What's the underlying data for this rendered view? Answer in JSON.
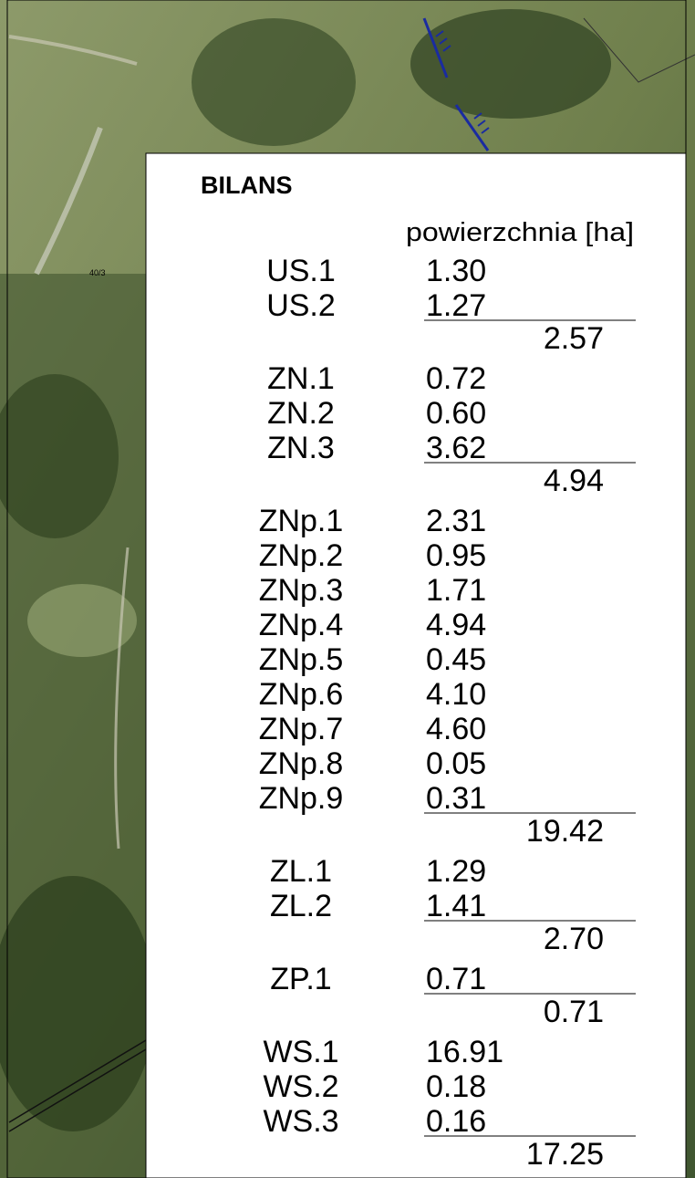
{
  "map": {
    "parcel_label": "40/3"
  },
  "legend": {
    "title": "BILANS",
    "column_header": "powierzchnia [ha]",
    "groups": [
      {
        "rows": [
          {
            "label": "US.1",
            "value": "1.30"
          },
          {
            "label": "US.2",
            "value": "1.27"
          }
        ],
        "total": "2.57"
      },
      {
        "rows": [
          {
            "label": "ZN.1",
            "value": "0.72"
          },
          {
            "label": "ZN.2",
            "value": "0.60"
          },
          {
            "label": "ZN.3",
            "value": "3.62"
          }
        ],
        "total": "4.94"
      },
      {
        "rows": [
          {
            "label": "ZNp.1",
            "value": "2.31"
          },
          {
            "label": "ZNp.2",
            "value": "0.95"
          },
          {
            "label": "ZNp.3",
            "value": "1.71"
          },
          {
            "label": "ZNp.4",
            "value": "4.94"
          },
          {
            "label": "ZNp.5",
            "value": "0.45"
          },
          {
            "label": "ZNp.6",
            "value": "4.10"
          },
          {
            "label": "ZNp.7",
            "value": "4.60"
          },
          {
            "label": "ZNp.8",
            "value": "0.05"
          },
          {
            "label": "ZNp.9",
            "value": "0.31"
          }
        ],
        "total": "19.42"
      },
      {
        "rows": [
          {
            "label": "ZL.1",
            "value": "1.29"
          },
          {
            "label": "ZL.2",
            "value": "1.41"
          }
        ],
        "total": "2.70"
      },
      {
        "rows": [
          {
            "label": "ZP.1",
            "value": "0.71"
          }
        ],
        "total": "0.71"
      },
      {
        "rows": [
          {
            "label": "WS.1",
            "value": "16.91"
          },
          {
            "label": "WS.2",
            "value": "0.18"
          },
          {
            "label": "WS.3",
            "value": "0.16"
          }
        ],
        "total": "17.25"
      }
    ]
  }
}
